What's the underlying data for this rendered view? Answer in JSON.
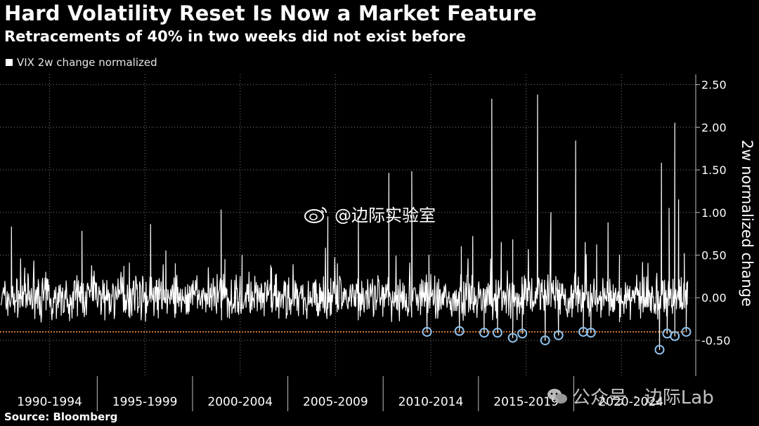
{
  "title": "Hard Volatility Reset Is Now a Market Feature",
  "subtitle": "Retracements of 40% in two weeks did not exist before",
  "legend_label": "VIX 2w change normalized",
  "source": "Source: Bloomberg",
  "watermark_weibo": "@边际实验室",
  "watermark_wechat": "公众号 · 边际Lab",
  "colors": {
    "background": "#000000",
    "series": "#ffffff",
    "threshold": "#e0823a",
    "marker": "#8fc1ec",
    "grid": "#7a7a7a"
  },
  "chart_data": {
    "type": "line",
    "title": "Hard Volatility Reset Is Now a Market Feature",
    "subtitle": "Retracements of 40% in two weeks did not exist before",
    "ylabel": "2w normalized change",
    "xlabel": "",
    "ylim": [
      -0.92,
      2.62
    ],
    "xlim": [
      1989.9,
      2026.4
    ],
    "yticks": [
      2.5,
      2.0,
      1.5,
      1.0,
      0.5,
      0.0,
      -0.5
    ],
    "ytick_labels": [
      "2.50",
      "2.00",
      "1.50",
      "1.00",
      "0.50",
      "0.00",
      "-0.50"
    ],
    "period_labels": [
      "1990-1994",
      "1995-1999",
      "2000-2004",
      "2005-2009",
      "2010-2014",
      "2015-2019",
      "2020-2024"
    ],
    "period_boundaries": [
      1995,
      2000,
      2005,
      2010,
      2015,
      2020
    ],
    "grid_years": [
      1992.5,
      1997.5,
      2002.5,
      2007.5,
      2012.5,
      2017.5,
      2022.5
    ],
    "threshold": -0.4,
    "series": [
      {
        "name": "VIX 2w change normalized",
        "spikes": [
          {
            "x": 1990.5,
            "y": 0.83
          },
          {
            "x": 1991.2,
            "y": 0.35
          },
          {
            "x": 1992.3,
            "y": 0.3
          },
          {
            "x": 1994.2,
            "y": 0.78
          },
          {
            "x": 1996.4,
            "y": 0.37
          },
          {
            "x": 1997.8,
            "y": 0.86
          },
          {
            "x": 1998.6,
            "y": 0.55
          },
          {
            "x": 1999.1,
            "y": 0.4
          },
          {
            "x": 2001.7,
            "y": 0.45
          },
          {
            "x": 2002.6,
            "y": 0.5
          },
          {
            "x": 2001.5,
            "y": 1.03
          },
          {
            "x": 2004.1,
            "y": 0.38
          },
          {
            "x": 2007.1,
            "y": 0.95
          },
          {
            "x": 2007.6,
            "y": 0.4
          },
          {
            "x": 2008.7,
            "y": 0.95
          },
          {
            "x": 2010.3,
            "y": 1.46
          },
          {
            "x": 2011.5,
            "y": 1.48
          },
          {
            "x": 2012.4,
            "y": 0.5
          },
          {
            "x": 2014.1,
            "y": 0.6
          },
          {
            "x": 2014.7,
            "y": 0.72
          },
          {
            "x": 2015.7,
            "y": 2.33
          },
          {
            "x": 2016.2,
            "y": 0.65
          },
          {
            "x": 2016.8,
            "y": 0.68
          },
          {
            "x": 2018.1,
            "y": 2.38
          },
          {
            "x": 2018.8,
            "y": 1.0
          },
          {
            "x": 2020.1,
            "y": 1.84
          },
          {
            "x": 2020.6,
            "y": 0.65
          },
          {
            "x": 2021.2,
            "y": 0.62
          },
          {
            "x": 2021.8,
            "y": 0.88
          },
          {
            "x": 2022.4,
            "y": 0.5
          },
          {
            "x": 2024.6,
            "y": 1.58
          },
          {
            "x": 2025.0,
            "y": 1.05
          },
          {
            "x": 2025.3,
            "y": 2.05
          },
          {
            "x": 2025.5,
            "y": 1.15
          },
          {
            "x": 2025.8,
            "y": 0.52
          }
        ],
        "troughs": [
          {
            "x": 2012.3,
            "y": -0.4
          },
          {
            "x": 2014.0,
            "y": -0.39
          },
          {
            "x": 2015.3,
            "y": -0.41
          },
          {
            "x": 2016.0,
            "y": -0.41
          },
          {
            "x": 2016.8,
            "y": -0.47
          },
          {
            "x": 2017.3,
            "y": -0.42
          },
          {
            "x": 2018.5,
            "y": -0.5
          },
          {
            "x": 2019.2,
            "y": -0.44
          },
          {
            "x": 2020.5,
            "y": -0.4
          },
          {
            "x": 2020.9,
            "y": -0.41
          },
          {
            "x": 2024.5,
            "y": -0.61
          },
          {
            "x": 2024.9,
            "y": -0.42
          },
          {
            "x": 2025.3,
            "y": -0.45
          },
          {
            "x": 2025.9,
            "y": -0.4
          }
        ]
      }
    ]
  }
}
